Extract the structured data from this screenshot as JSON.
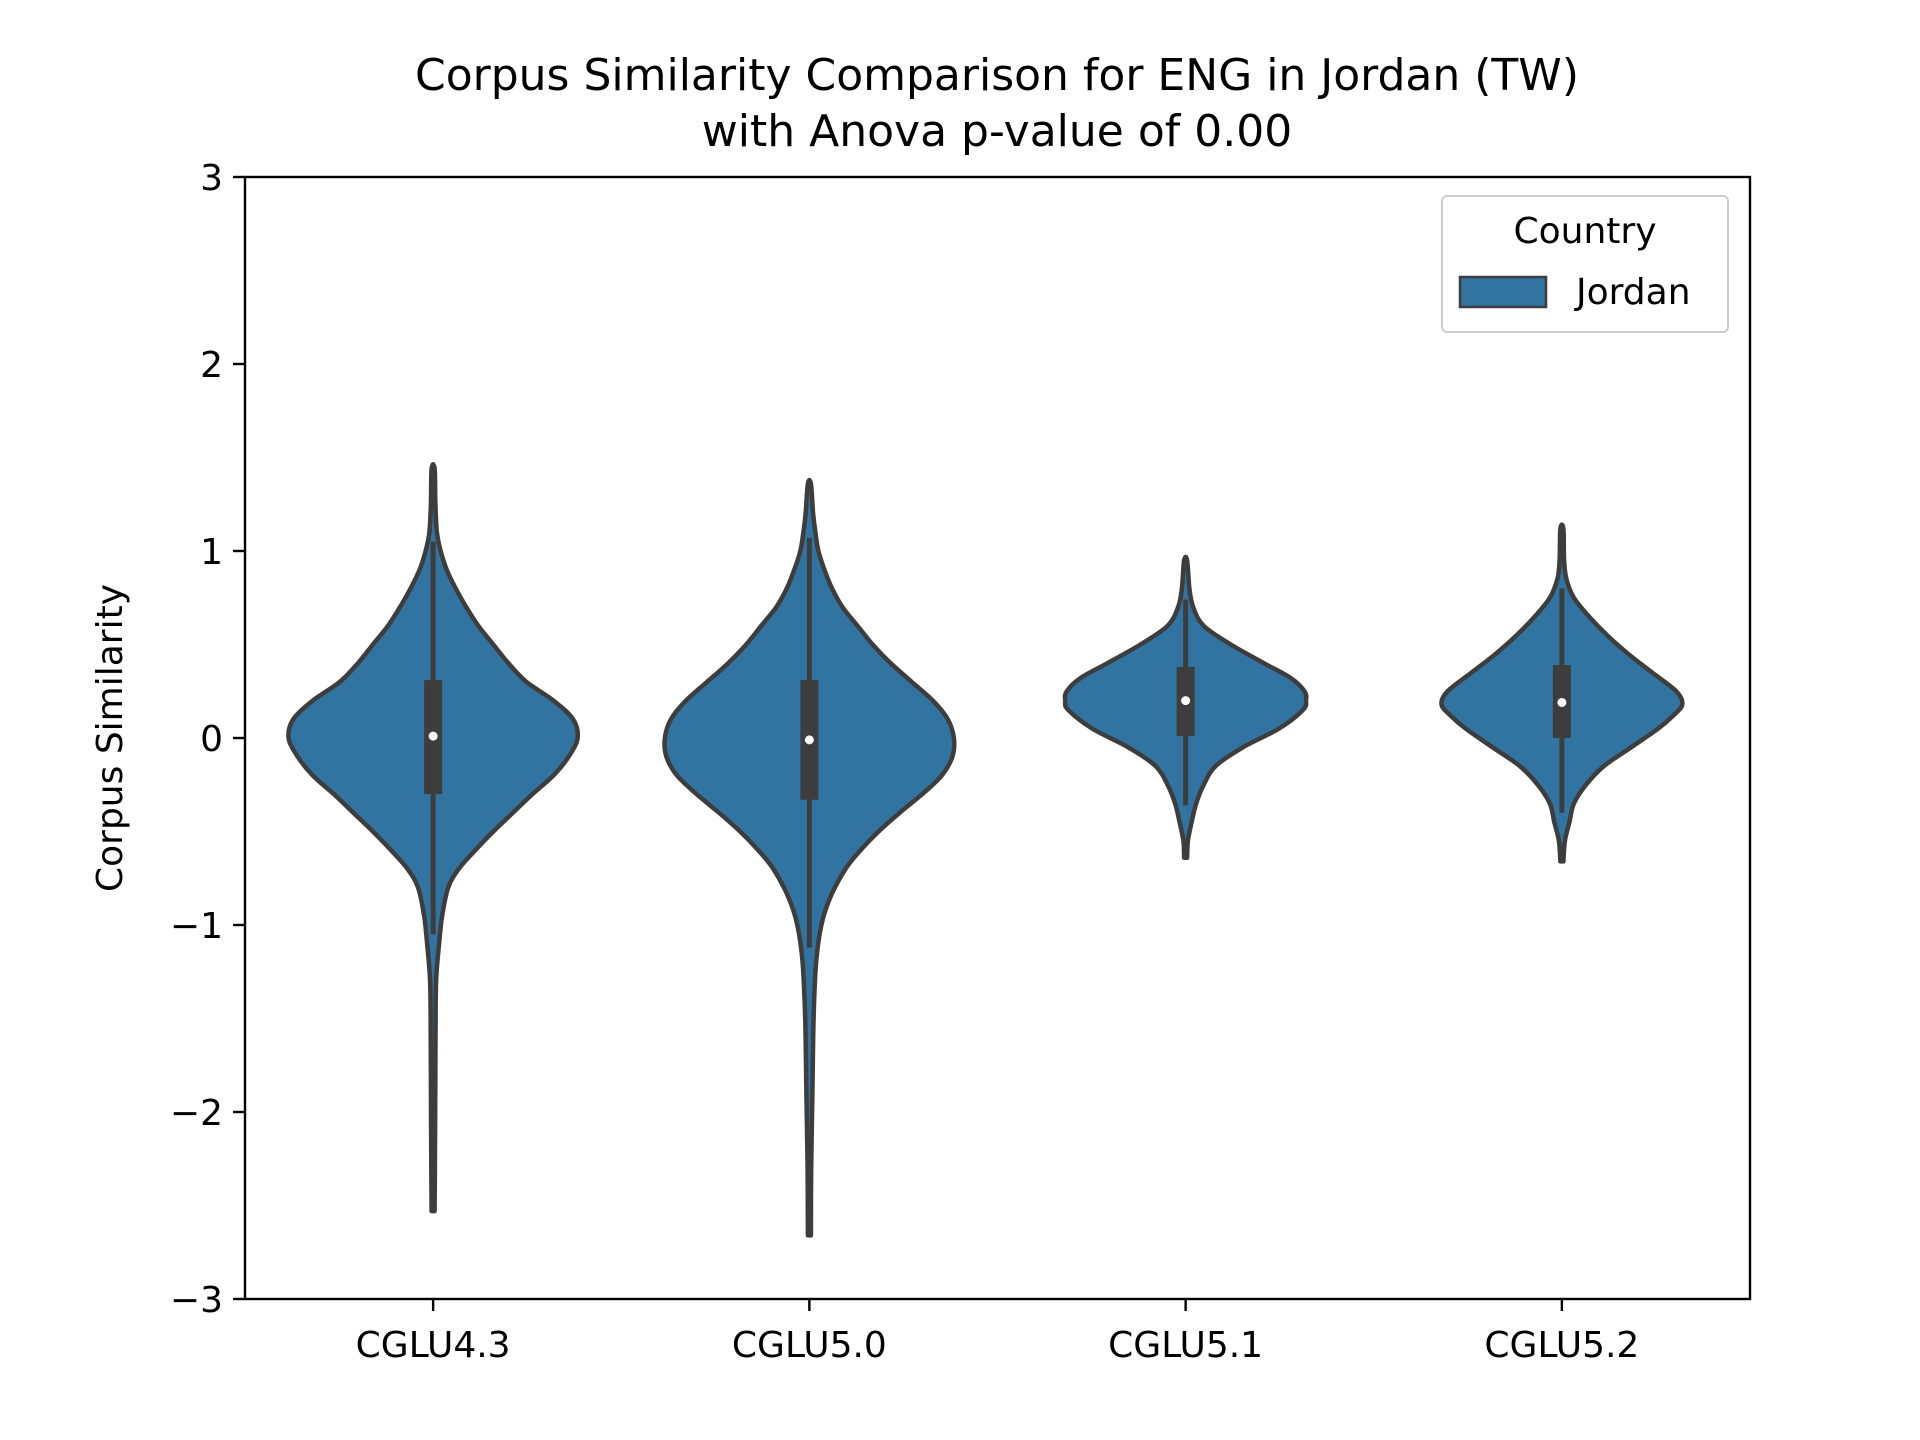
{
  "chart_data": {
    "type": "violin",
    "title_line1": "Corpus Similarity Comparison for ENG in Jordan (TW)",
    "title_line2": "with Anova p-value of 0.00",
    "xlabel": "",
    "ylabel": "Corpus Similarity",
    "ylim": [
      -3,
      3
    ],
    "yticks": [
      -3,
      -2,
      -1,
      0,
      1,
      2,
      3
    ],
    "ytick_labels": [
      "−3",
      "−2",
      "−1",
      "0",
      "1",
      "2",
      "3"
    ],
    "categories": [
      "CGLU4.3",
      "CGLU5.0",
      "CGLU5.1",
      "CGLU5.2"
    ],
    "grid": false,
    "legend": {
      "title": "Country",
      "entries": [
        "Jordan"
      ],
      "placement": "top-right"
    },
    "colors": {
      "fill": "#3274a1",
      "edge": "#3d3d3d",
      "median": "#ffffff"
    },
    "series": [
      {
        "name": "Jordan",
        "violins": [
          {
            "category": "CGLU4.3",
            "median": 0.01,
            "q1": -0.3,
            "q3": 0.31,
            "whisker_low": -1.05,
            "whisker_high": 1.05,
            "profile": [
              [
                -2.53,
                0.01
              ],
              [
                -2.3,
                0.012
              ],
              [
                -2.0,
                0.014
              ],
              [
                -1.6,
                0.016
              ],
              [
                -1.3,
                0.02
              ],
              [
                -1.1,
                0.04
              ],
              [
                -0.95,
                0.06
              ],
              [
                -0.8,
                0.1
              ],
              [
                -0.7,
                0.17
              ],
              [
                -0.6,
                0.28
              ],
              [
                -0.5,
                0.4
              ],
              [
                -0.4,
                0.53
              ],
              [
                -0.3,
                0.66
              ],
              [
                -0.2,
                0.8
              ],
              [
                -0.1,
                0.9
              ],
              [
                0.0,
                0.96
              ],
              [
                0.1,
                0.93
              ],
              [
                0.2,
                0.8
              ],
              [
                0.3,
                0.62
              ],
              [
                0.4,
                0.5
              ],
              [
                0.5,
                0.4
              ],
              [
                0.6,
                0.3
              ],
              [
                0.7,
                0.22
              ],
              [
                0.8,
                0.15
              ],
              [
                0.9,
                0.09
              ],
              [
                1.0,
                0.05
              ],
              [
                1.1,
                0.025
              ],
              [
                1.25,
                0.015
              ],
              [
                1.44,
                0.01
              ]
            ]
          },
          {
            "category": "CGLU5.0",
            "median": -0.01,
            "q1": -0.33,
            "q3": 0.31,
            "whisker_low": -1.12,
            "whisker_high": 1.07,
            "profile": [
              [
                -2.66,
                0.01
              ],
              [
                -2.3,
                0.012
              ],
              [
                -1.9,
                0.02
              ],
              [
                -1.5,
                0.028
              ],
              [
                -1.2,
                0.045
              ],
              [
                -1.0,
                0.08
              ],
              [
                -0.85,
                0.14
              ],
              [
                -0.7,
                0.24
              ],
              [
                -0.6,
                0.34
              ],
              [
                -0.5,
                0.46
              ],
              [
                -0.4,
                0.6
              ],
              [
                -0.3,
                0.75
              ],
              [
                -0.2,
                0.88
              ],
              [
                -0.1,
                0.95
              ],
              [
                0.0,
                0.96
              ],
              [
                0.1,
                0.92
              ],
              [
                0.2,
                0.82
              ],
              [
                0.3,
                0.68
              ],
              [
                0.4,
                0.54
              ],
              [
                0.5,
                0.42
              ],
              [
                0.6,
                0.32
              ],
              [
                0.7,
                0.22
              ],
              [
                0.8,
                0.15
              ],
              [
                0.9,
                0.1
              ],
              [
                1.0,
                0.06
              ],
              [
                1.1,
                0.04
              ],
              [
                1.2,
                0.025
              ],
              [
                1.36,
                0.01
              ]
            ]
          },
          {
            "category": "CGLU5.1",
            "median": 0.2,
            "q1": 0.01,
            "q3": 0.38,
            "whisker_low": -0.36,
            "whisker_high": 0.74,
            "profile": [
              [
                -0.64,
                0.01
              ],
              [
                -0.55,
                0.015
              ],
              [
                -0.45,
                0.04
              ],
              [
                -0.35,
                0.07
              ],
              [
                -0.25,
                0.12
              ],
              [
                -0.15,
                0.2
              ],
              [
                -0.05,
                0.38
              ],
              [
                0.05,
                0.62
              ],
              [
                0.15,
                0.78
              ],
              [
                0.2,
                0.8
              ],
              [
                0.25,
                0.79
              ],
              [
                0.32,
                0.7
              ],
              [
                0.4,
                0.52
              ],
              [
                0.5,
                0.3
              ],
              [
                0.6,
                0.12
              ],
              [
                0.7,
                0.05
              ],
              [
                0.8,
                0.025
              ],
              [
                0.95,
                0.01
              ]
            ]
          },
          {
            "category": "CGLU5.2",
            "median": 0.19,
            "q1": 0.0,
            "q3": 0.39,
            "whisker_low": -0.4,
            "whisker_high": 0.8,
            "profile": [
              [
                -0.66,
                0.01
              ],
              [
                -0.55,
                0.02
              ],
              [
                -0.45,
                0.05
              ],
              [
                -0.35,
                0.08
              ],
              [
                -0.25,
                0.16
              ],
              [
                -0.15,
                0.28
              ],
              [
                -0.05,
                0.46
              ],
              [
                0.05,
                0.64
              ],
              [
                0.12,
                0.74
              ],
              [
                0.18,
                0.8
              ],
              [
                0.25,
                0.76
              ],
              [
                0.35,
                0.6
              ],
              [
                0.45,
                0.44
              ],
              [
                0.55,
                0.3
              ],
              [
                0.65,
                0.18
              ],
              [
                0.75,
                0.08
              ],
              [
                0.85,
                0.03
              ],
              [
                0.95,
                0.015
              ],
              [
                1.12,
                0.01
              ]
            ]
          }
        ]
      }
    ]
  }
}
